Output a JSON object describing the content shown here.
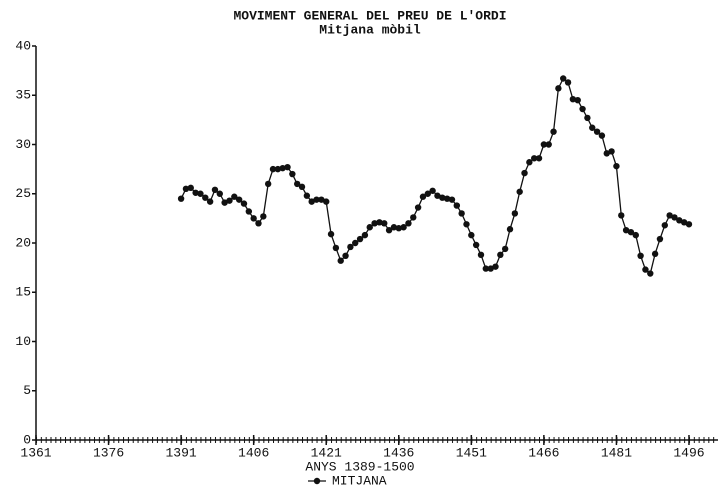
{
  "chart_data": {
    "type": "line",
    "title": "MOVIMENT GENERAL DEL PREU DE L'ORDI",
    "subtitle": "Mitjana mòbil",
    "xlabel": "ANYS 1389-1500",
    "xlim": [
      1361,
      1502
    ],
    "ylim": [
      0,
      40
    ],
    "xticks": [
      1361,
      1376,
      1391,
      1406,
      1421,
      1436,
      1451,
      1466,
      1481,
      1496
    ],
    "yticks": [
      0,
      5,
      10,
      15,
      20,
      25,
      30,
      35,
      40
    ],
    "grid": false,
    "legend": "bottom",
    "x": [
      1391,
      1392,
      1393,
      1394,
      1395,
      1396,
      1397,
      1398,
      1399,
      1400,
      1401,
      1402,
      1403,
      1404,
      1405,
      1406,
      1407,
      1408,
      1409,
      1410,
      1411,
      1412,
      1413,
      1414,
      1415,
      1416,
      1417,
      1418,
      1419,
      1420,
      1421,
      1422,
      1423,
      1424,
      1425,
      1426,
      1427,
      1428,
      1429,
      1430,
      1431,
      1432,
      1433,
      1434,
      1435,
      1436,
      1437,
      1438,
      1439,
      1440,
      1441,
      1442,
      1443,
      1444,
      1445,
      1446,
      1447,
      1448,
      1449,
      1450,
      1451,
      1452,
      1453,
      1454,
      1455,
      1456,
      1457,
      1458,
      1459,
      1460,
      1461,
      1462,
      1463,
      1464,
      1465,
      1466,
      1467,
      1468,
      1469,
      1470,
      1471,
      1472,
      1473,
      1474,
      1475,
      1476,
      1477,
      1478,
      1479,
      1480,
      1481,
      1482,
      1483,
      1484,
      1485,
      1486,
      1487,
      1488,
      1489,
      1490,
      1491,
      1492,
      1493,
      1494,
      1495,
      1496
    ],
    "series": [
      {
        "name": "MITJANA",
        "color": "#111111",
        "values": [
          24.5,
          25.5,
          25.6,
          25.1,
          25.0,
          24.6,
          24.2,
          25.4,
          25.0,
          24.1,
          24.3,
          24.7,
          24.4,
          24.0,
          23.2,
          22.5,
          22.0,
          22.7,
          26.0,
          27.5,
          27.5,
          27.6,
          27.7,
          27.0,
          26.0,
          25.7,
          24.8,
          24.2,
          24.4,
          24.4,
          24.2,
          20.9,
          19.5,
          18.2,
          18.7,
          19.6,
          20.0,
          20.4,
          20.8,
          21.6,
          22.0,
          22.1,
          22.0,
          21.3,
          21.6,
          21.5,
          21.6,
          22.0,
          22.6,
          23.6,
          24.7,
          25.0,
          25.3,
          24.8,
          24.6,
          24.5,
          24.4,
          23.8,
          23.0,
          21.9,
          20.8,
          19.8,
          18.8,
          17.4,
          17.4,
          17.6,
          18.8,
          19.4,
          21.4,
          23.0,
          25.2,
          27.1,
          28.2,
          28.6,
          28.6,
          30.0,
          30.0,
          31.3,
          35.7,
          36.7,
          36.3,
          34.6,
          34.5,
          33.6,
          32.7,
          31.7,
          31.3,
          30.9,
          29.1,
          29.3,
          27.8,
          22.8,
          21.3,
          21.1,
          20.8,
          18.7,
          17.3,
          16.9,
          18.9,
          20.4,
          21.8,
          22.8,
          22.6,
          22.3,
          22.1,
          21.9
        ]
      }
    ]
  }
}
